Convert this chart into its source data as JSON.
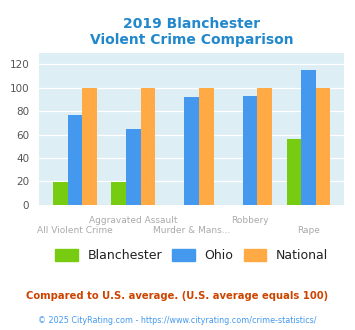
{
  "title_line1": "2019 Blanchester",
  "title_line2": "Violent Crime Comparison",
  "categories_top": [
    "Aggravated Assault",
    "Robbery"
  ],
  "categories_bottom": [
    "All Violent Crime",
    "Murder & Mans...",
    "Rape"
  ],
  "blanchester": [
    19,
    19,
    0,
    0,
    56
  ],
  "ohio": [
    77,
    65,
    92,
    93,
    115
  ],
  "national": [
    100,
    100,
    100,
    100,
    100
  ],
  "bar_color_blanchester": "#77cc11",
  "bar_color_ohio": "#4499ee",
  "bar_color_national": "#ffaa44",
  "bg_color": "#ddeef5",
  "title_color": "#2288cc",
  "xtick_color": "#aaaaaa",
  "ylim": [
    0,
    130
  ],
  "yticks": [
    0,
    20,
    40,
    60,
    80,
    100,
    120
  ],
  "footnote1": "Compared to U.S. average. (U.S. average equals 100)",
  "footnote2": "© 2025 CityRating.com - https://www.cityrating.com/crime-statistics/",
  "footnote1_color": "#cc4400",
  "footnote2_color": "#4499ee",
  "legend_text_color": "#222222",
  "legend_fontsize": 9
}
